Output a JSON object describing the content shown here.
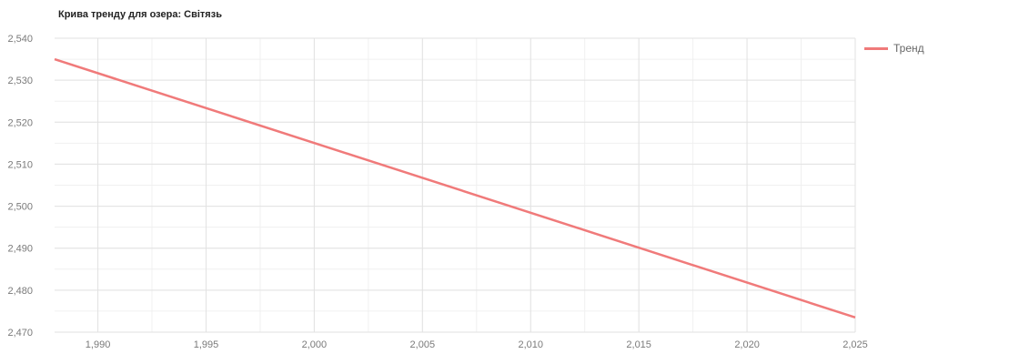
{
  "chart_data": {
    "type": "line",
    "title": "Крива тренду для озера: Світязь",
    "xlabel": "",
    "ylabel": "",
    "xlim": [
      1988,
      2025
    ],
    "ylim": [
      2470,
      2540
    ],
    "x_ticks": [
      "1,990",
      "1,995",
      "2,000",
      "2,005",
      "2,010",
      "2,015",
      "2,020",
      "2,025"
    ],
    "y_ticks": [
      "2,540",
      "2,530",
      "2,520",
      "2,510",
      "2,500",
      "2,490",
      "2,480",
      "2,470"
    ],
    "grid": true,
    "legend_position": "top-right",
    "series": [
      {
        "name": "Тренд",
        "color": "#f07a7a",
        "x": [
          1988,
          2025
        ],
        "y": [
          2535,
          2473.5
        ]
      }
    ]
  }
}
